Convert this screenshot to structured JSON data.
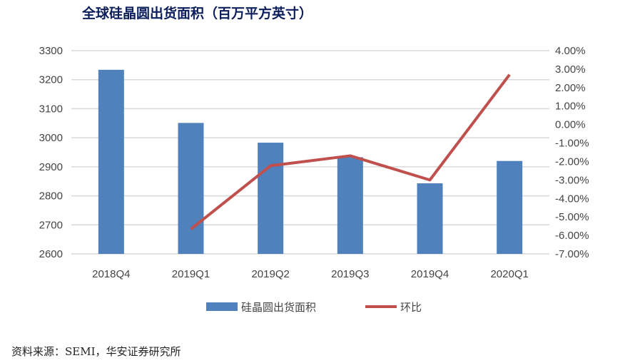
{
  "chart_data": {
    "type": "bar+line",
    "title": "全球硅晶圆出货面积（百万平方英寸）",
    "categories": [
      "2018Q4",
      "2019Q1",
      "2019Q2",
      "2019Q3",
      "2019Q4",
      "2020Q1"
    ],
    "series": [
      {
        "name": "硅晶圆出货面积",
        "type": "bar",
        "axis": "left",
        "color": "#4f81bd",
        "values": [
          3234,
          3051,
          2983,
          2933,
          2843,
          2920
        ]
      },
      {
        "name": "环比",
        "type": "line",
        "axis": "right",
        "color": "#c0504d",
        "values": [
          null,
          -5.66,
          -2.23,
          -1.69,
          -3.0,
          2.7
        ]
      }
    ],
    "ylim_left": [
      2600,
      3300
    ],
    "yticks_left": [
      "2600",
      "2700",
      "2800",
      "2900",
      "3000",
      "3100",
      "3200",
      "3300"
    ],
    "ylim_right": [
      -7,
      4
    ],
    "yticks_right": [
      "-7.00%",
      "-6.00%",
      "-5.00%",
      "-4.00%",
      "-3.00%",
      "-2.00%",
      "-1.00%",
      "0.00%",
      "1.00%",
      "2.00%",
      "3.00%",
      "4.00%"
    ],
    "grid": true,
    "legend": "bottom"
  },
  "source": "资料来源：SEMI，华安证券研究所"
}
